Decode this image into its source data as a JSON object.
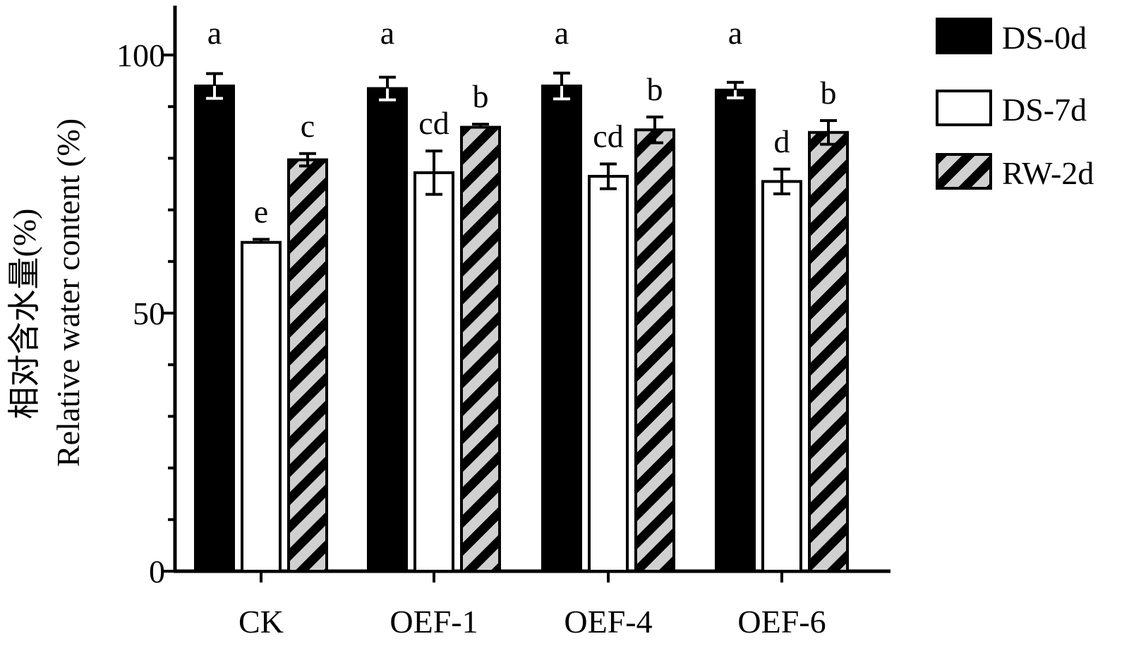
{
  "chart_data": {
    "type": "bar",
    "ylabel_zh": "相对含水量(%)",
    "ylabel": "Relative water content (%)",
    "ylim": [
      0,
      110
    ],
    "yticks": [
      0,
      50,
      100
    ],
    "categories": [
      "CK",
      "OEF-1",
      "OEF-4",
      "OEF-6"
    ],
    "legend_position": "top-right",
    "grid": false,
    "series": [
      {
        "name": "DS-0d",
        "fill": "solid-black",
        "color": "#000000",
        "values": [
          94,
          93.5,
          94,
          93.2
        ],
        "errors": [
          2.4,
          2.2,
          2.5,
          1.5
        ],
        "letters": [
          "a",
          "a",
          "a",
          "a"
        ]
      },
      {
        "name": "DS-7d",
        "fill": "white",
        "color": "#ffffff",
        "values": [
          63.7,
          77.2,
          76.5,
          75.5
        ],
        "errors": [
          0.6,
          4.2,
          2.4,
          2.4
        ],
        "letters": [
          "e",
          "cd",
          "cd",
          "d"
        ]
      },
      {
        "name": "RW-2d",
        "fill": "hatched",
        "color": "#cfcfcf",
        "values": [
          79.7,
          86,
          85.5,
          85
        ],
        "errors": [
          1.2,
          0.6,
          2.5,
          2.3
        ],
        "letters": [
          "c",
          "b",
          "b",
          "b"
        ]
      }
    ]
  }
}
